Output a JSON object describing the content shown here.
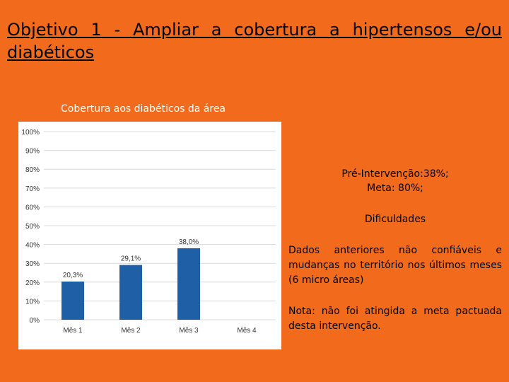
{
  "slide": {
    "title": "Objetivo 1 - Ampliar a cobertura a hipertensos e/ou diabéticos",
    "chart_caption": "Cobertura aos diabéticos da área",
    "pre_intervencao": "Pré-Intervenção:38%;",
    "meta": "Meta: 80%;",
    "dificuldades_heading": "Dificuldades",
    "dificuldades_text": "Dados anteriores não confiáveis e mudanças no território nos últimos meses (6 micro áreas)",
    "nota": "Nota: não foi atingida a meta pactuada desta intervenção."
  },
  "colors": {
    "background": "#f26a1b",
    "bar": "#1f5fa6",
    "grid": "#d9d9d9"
  },
  "chart_data": {
    "type": "bar",
    "title": "Cobertura aos diabéticos da área",
    "categories": [
      "Mês 1",
      "Mês 2",
      "Mês 3",
      "Mês 4"
    ],
    "values": [
      20.3,
      29.1,
      38.0,
      null
    ],
    "data_labels": [
      "20,3%",
      "29,1%",
      "38,0%",
      ""
    ],
    "ylim": [
      0,
      100
    ],
    "y_ticks": [
      0,
      10,
      20,
      30,
      40,
      50,
      60,
      70,
      80,
      90,
      100
    ],
    "y_tick_labels": [
      "0%",
      "10%",
      "20%",
      "30%",
      "40%",
      "50%",
      "60%",
      "70%",
      "80%",
      "90%",
      "100%"
    ],
    "grid": true,
    "legend": "none"
  }
}
